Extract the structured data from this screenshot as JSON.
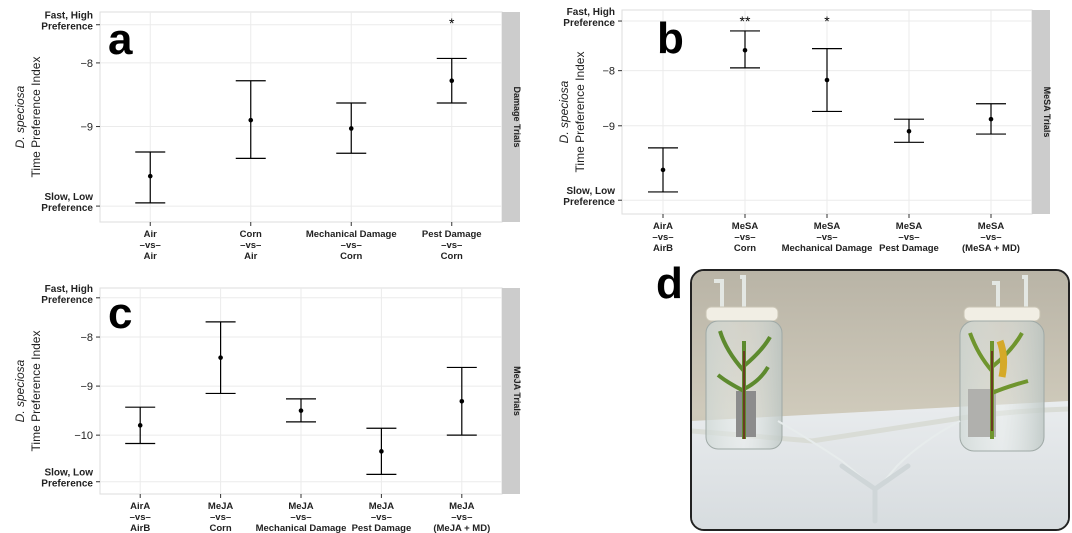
{
  "chart_data": [
    {
      "panel": "a",
      "type": "errorbar",
      "strip_label": "Damage Trials",
      "ylabel_species": "D. speciosa",
      "ylabel": "Time Preference Index",
      "ylim": [
        -10.5,
        -7.2
      ],
      "y_ticks": [
        -8,
        -9
      ],
      "y_tick_labels": [
        "−8",
        "−9"
      ],
      "y_extreme_labels": {
        "top": [
          "Fast, High",
          "Preference"
        ],
        "bottom": [
          "Slow, Low",
          "Preference"
        ]
      },
      "grid": true,
      "categories": [
        [
          "Air",
          "–vs–",
          "Air"
        ],
        [
          "Corn",
          "–vs–",
          "Air"
        ],
        [
          "Mechanical Damage",
          "–vs–",
          "Corn"
        ],
        [
          "Pest Damage",
          "–vs–",
          "Corn"
        ]
      ],
      "points": [
        {
          "mean": -9.78,
          "lower": -10.2,
          "upper": -9.4,
          "sig": ""
        },
        {
          "mean": -8.9,
          "lower": -9.5,
          "upper": -8.28,
          "sig": ""
        },
        {
          "mean": -9.03,
          "lower": -9.42,
          "upper": -8.63,
          "sig": ""
        },
        {
          "mean": -8.28,
          "lower": -8.63,
          "upper": -7.93,
          "sig": "*"
        }
      ]
    },
    {
      "panel": "b",
      "type": "errorbar",
      "strip_label": "MeSA Trials",
      "ylabel_species": "D. speciosa",
      "ylabel": "Time Preference Index",
      "ylim": [
        -10.6,
        -6.9
      ],
      "y_ticks": [
        -8,
        -9
      ],
      "y_tick_labels": [
        "−8",
        "−9"
      ],
      "y_extreme_labels": {
        "top": [
          "Fast, High",
          "Preference"
        ],
        "bottom": [
          "Slow, Low",
          "Preference"
        ]
      },
      "grid": true,
      "categories": [
        [
          "AirA",
          "–vs–",
          "AirB"
        ],
        [
          "MeSA",
          "–vs–",
          "Corn"
        ],
        [
          "MeSA",
          "–vs–",
          "Mechanical Damage"
        ],
        [
          "MeSA",
          "–vs–",
          "Pest Damage"
        ],
        [
          "MeSA",
          "–vs–",
          "(MeSA + MD)"
        ]
      ],
      "points": [
        {
          "mean": -9.8,
          "lower": -10.2,
          "upper": -9.4,
          "sig": ""
        },
        {
          "mean": -7.63,
          "lower": -7.95,
          "upper": -7.28,
          "sig": "**"
        },
        {
          "mean": -8.17,
          "lower": -8.74,
          "upper": -7.6,
          "sig": "*"
        },
        {
          "mean": -9.1,
          "lower": -9.3,
          "upper": -8.88,
          "sig": ""
        },
        {
          "mean": -8.88,
          "lower": -9.15,
          "upper": -8.6,
          "sig": ""
        }
      ]
    },
    {
      "panel": "c",
      "type": "errorbar",
      "strip_label": "MeJA Trials",
      "ylabel_species": "D. speciosa",
      "ylabel": "Time Preference Index",
      "ylim": [
        -11.2,
        -7.0
      ],
      "y_ticks": [
        -8,
        -9,
        -10
      ],
      "y_tick_labels": [
        "−8",
        "−9",
        "−10"
      ],
      "y_extreme_labels": {
        "top": [
          "Fast, High",
          "Preference"
        ],
        "bottom": [
          "Slow, Low",
          "Preference"
        ]
      },
      "grid": true,
      "categories": [
        [
          "AirA",
          "–vs–",
          "AirB"
        ],
        [
          "MeJA",
          "–vs–",
          "Corn"
        ],
        [
          "MeJA",
          "–vs–",
          "Mechanical Damage"
        ],
        [
          "MeJA",
          "–vs–",
          "Pest Damage"
        ],
        [
          "MeJA",
          "–vs–",
          "(MeJA + MD)"
        ]
      ],
      "points": [
        {
          "mean": -9.8,
          "lower": -10.17,
          "upper": -9.43,
          "sig": ""
        },
        {
          "mean": -8.42,
          "lower": -9.15,
          "upper": -7.69,
          "sig": ""
        },
        {
          "mean": -9.5,
          "lower": -9.73,
          "upper": -9.26,
          "sig": ""
        },
        {
          "mean": -10.33,
          "lower": -10.8,
          "upper": -9.86,
          "sig": ""
        },
        {
          "mean": -9.31,
          "lower": -10.0,
          "upper": -8.62,
          "sig": ""
        }
      ]
    }
  ],
  "photo": {
    "panel": "d",
    "icon": "olfactometer-photo"
  },
  "colors": {
    "panel_bg": "#ffffff",
    "grid": "#ebebeb",
    "strip": "#cccccc",
    "ink": "#000000"
  }
}
